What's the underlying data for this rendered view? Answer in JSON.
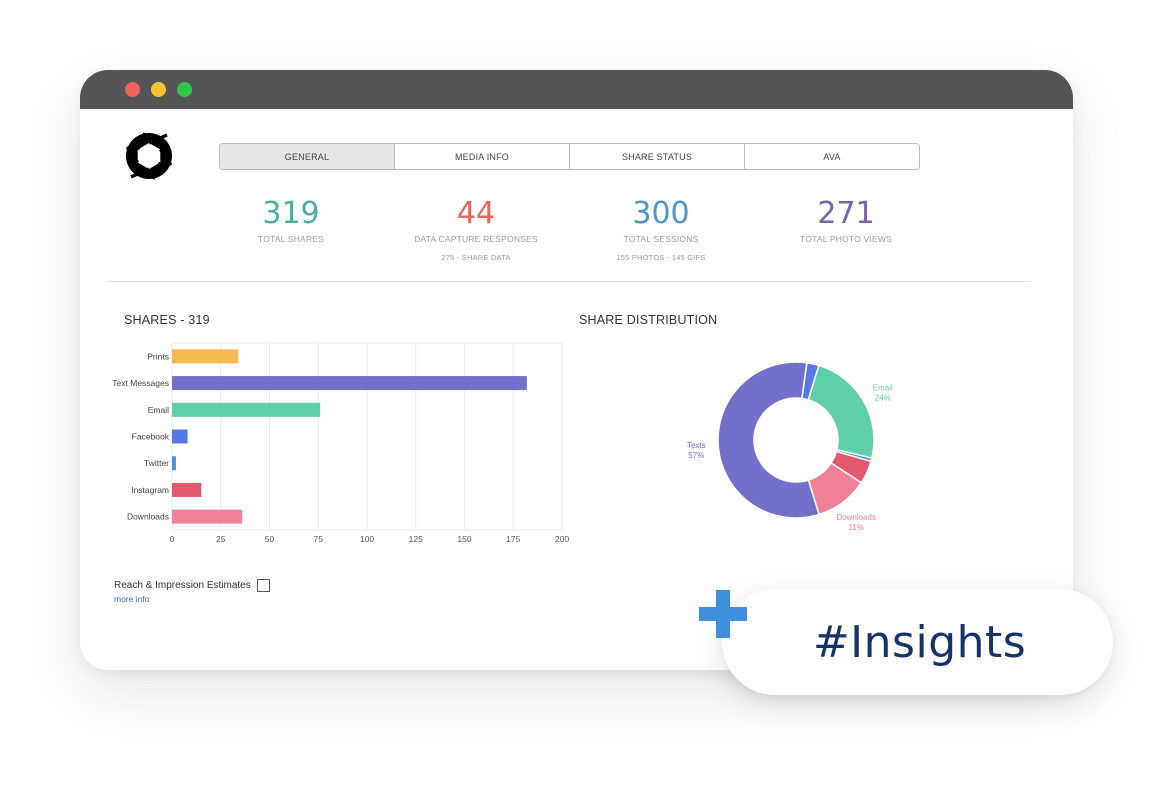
{
  "window": {
    "controls": [
      "close",
      "minimize",
      "maximize"
    ]
  },
  "logo": {
    "icon": "aperture-logo-icon"
  },
  "tabs": [
    {
      "label": "GENERAL",
      "active": true
    },
    {
      "label": "MEDIA INFO",
      "active": false
    },
    {
      "label": "SHARE STATUS",
      "active": false
    },
    {
      "label": "AVA",
      "active": false
    }
  ],
  "stats": [
    {
      "value": "319",
      "label": "TOTAL SHARES",
      "sub": "",
      "color": "#4bb0a0"
    },
    {
      "value": "44",
      "label": "DATA CAPTURE RESPONSES",
      "sub": "275 - SHARE DATA",
      "color": "#e5675a"
    },
    {
      "value": "300",
      "label": "TOTAL SESSIONS",
      "sub": "155 PHOTOS - 145 GIFS",
      "color": "#4a96cf"
    },
    {
      "value": "271",
      "label": "TOTAL PHOTO VIEWS",
      "sub": "",
      "color": "#7a62ac"
    }
  ],
  "shares_title": "SHARES - 319",
  "distribution_title": "SHARE DISTRIBUTION",
  "chart_data": [
    {
      "type": "bar",
      "orientation": "horizontal",
      "categories": [
        "Prints",
        "Text Messages",
        "Email",
        "Facebook",
        "Twitter",
        "Instagram",
        "Downloads"
      ],
      "values": [
        34,
        182,
        76,
        8,
        2,
        15,
        36
      ],
      "colors": [
        "#f6b94f",
        "#7270c8",
        "#5fcfa8",
        "#5579e8",
        "#4a90e6",
        "#e4586e",
        "#f18199"
      ],
      "xlim": [
        0,
        200
      ],
      "xticks": [
        0,
        25,
        50,
        75,
        100,
        125,
        150,
        175,
        200
      ],
      "grid": true
    },
    {
      "type": "pie",
      "variant": "donut",
      "slices": [
        {
          "name": "Facebook",
          "value": 2.5,
          "color": "#5579e8",
          "label": ""
        },
        {
          "name": "Email",
          "value": 24,
          "color": "#5fcfa8",
          "label": "Email",
          "pct_label": "24%"
        },
        {
          "name": "Twitter",
          "value": 0.7,
          "color": "#4a90e6",
          "label": ""
        },
        {
          "name": "Instagram",
          "value": 4.8,
          "color": "#e4586e",
          "label": ""
        },
        {
          "name": "Downloads",
          "value": 11,
          "color": "#f18199",
          "label": "Downloads",
          "pct_label": "11%"
        },
        {
          "name": "Texts",
          "value": 57,
          "color": "#7270c8",
          "label": "Texts",
          "pct_label": "57%"
        }
      ]
    }
  ],
  "reach": {
    "label": "Reach & Impression Estimates",
    "checked": false,
    "link": "more info"
  },
  "badge": {
    "text": "#Insights",
    "icon": "plus-icon"
  }
}
